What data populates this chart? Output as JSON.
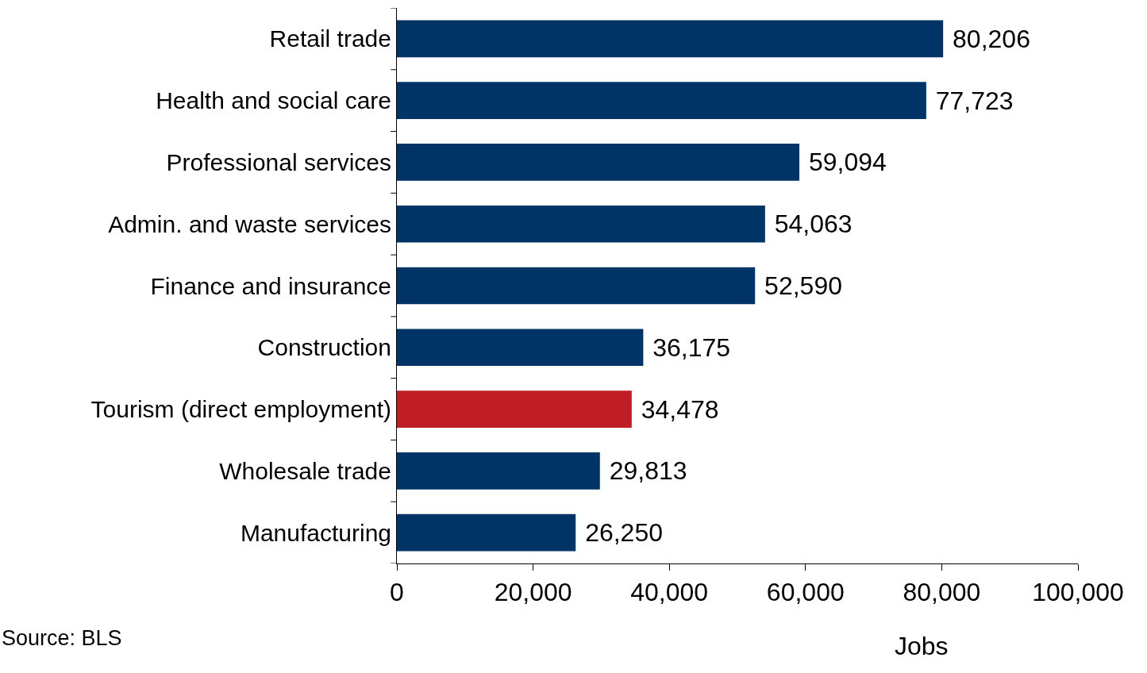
{
  "chart_data": {
    "type": "bar",
    "orientation": "horizontal",
    "xlabel": "Jobs",
    "categories": [
      "Retail trade",
      "Health and social care",
      "Professional services",
      "Admin. and waste services",
      "Finance and insurance",
      "Construction",
      "Tourism (direct employment)",
      "Wholesale trade",
      "Manufacturing"
    ],
    "values": [
      80206,
      77723,
      59094,
      54063,
      52590,
      36175,
      34478,
      29813,
      26250
    ],
    "colors": [
      "#003366",
      "#003366",
      "#003366",
      "#003366",
      "#003366",
      "#003366",
      "#be1e24",
      "#003366",
      "#003366"
    ],
    "xlim": [
      0,
      100000
    ],
    "xticks": [
      {
        "value": 0,
        "label": "0"
      },
      {
        "value": 20000,
        "label": "20,000"
      },
      {
        "value": 40000,
        "label": "40,000"
      },
      {
        "value": 60000,
        "label": "60,000"
      },
      {
        "value": 80000,
        "label": "80,000"
      },
      {
        "value": 100000,
        "label": "100,000"
      }
    ],
    "value_labels": [
      "80,206",
      "77,723",
      "59,094",
      "54,063",
      "52,590",
      "36,175",
      "34,478",
      "29,813",
      "26,250"
    ],
    "annotations": [
      "Source: BLS"
    ]
  }
}
